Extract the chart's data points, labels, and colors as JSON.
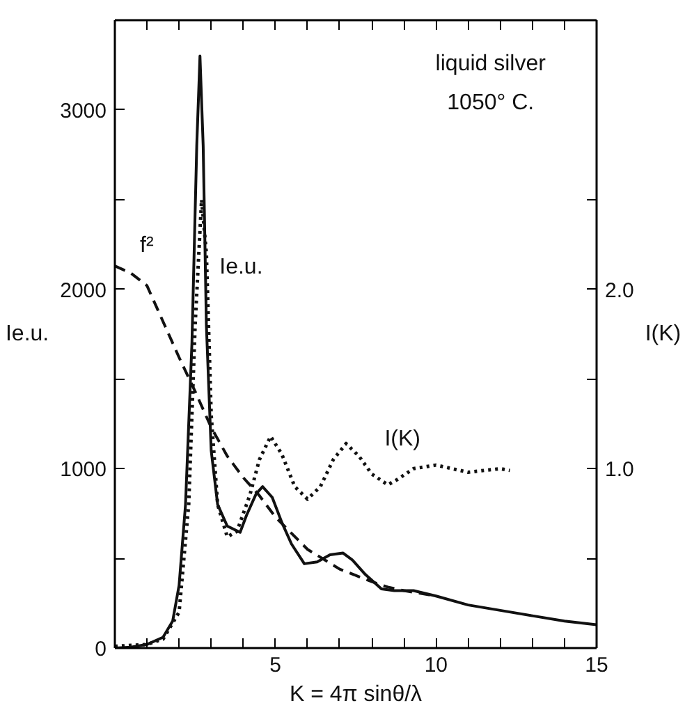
{
  "chart_data": {
    "type": "line",
    "xlabel": "K = 4π sinθ/λ",
    "ylabel": "Ie.u.",
    "y2label": "I(K)",
    "annotations": [
      "liquid silver",
      "1050° C."
    ],
    "xlim": [
      0,
      15
    ],
    "ylim": [
      0,
      3500
    ],
    "y2lim": [
      0,
      3.5
    ],
    "xticks": [
      {
        "value": 1,
        "label": null
      },
      {
        "value": 2,
        "label": null
      },
      {
        "value": 3,
        "label": null
      },
      {
        "value": 4,
        "label": null
      },
      5,
      {
        "value": 6,
        "label": null
      },
      {
        "value": 7,
        "label": null
      },
      {
        "value": 8,
        "label": null
      },
      {
        "value": 9,
        "label": null
      },
      10,
      {
        "value": 11,
        "label": null
      },
      {
        "value": 12,
        "label": null
      },
      {
        "value": 13,
        "label": null
      },
      {
        "value": 14,
        "label": null
      },
      15
    ],
    "yticks": [
      0,
      {
        "value": 500,
        "label": null
      },
      1000,
      {
        "value": 1500,
        "label": null
      },
      2000,
      {
        "value": 2500,
        "label": null
      },
      3000
    ],
    "y2ticks": [
      {
        "value": 0.5,
        "label": null
      },
      {
        "value": 1.0,
        "label": "1.0"
      },
      {
        "value": 1.5,
        "label": null
      },
      {
        "value": 2.0,
        "label": "2.0"
      },
      {
        "value": 2.5,
        "label": null
      }
    ],
    "grid": false,
    "legend": false,
    "marker": "none",
    "series": [
      {
        "name": "Ie.u.",
        "color": "#111111",
        "line_style": "solid",
        "x": [
          0,
          0.5,
          1,
          1.5,
          1.8,
          2.0,
          2.2,
          2.4,
          2.55,
          2.65,
          2.75,
          2.85,
          3.0,
          3.2,
          3.5,
          3.9,
          4.1,
          4.4,
          4.6,
          4.9,
          5.2,
          5.5,
          5.9,
          6.3,
          6.7,
          7.1,
          7.4,
          7.8,
          8.3,
          8.7,
          9.3,
          10,
          11,
          12,
          13,
          14,
          15
        ],
        "values": [
          0,
          5,
          20,
          60,
          150,
          350,
          800,
          1700,
          2800,
          3300,
          2800,
          1800,
          1100,
          800,
          680,
          645,
          740,
          860,
          900,
          840,
          700,
          580,
          470,
          480,
          520,
          530,
          490,
          410,
          330,
          320,
          320,
          290,
          240,
          210,
          180,
          150,
          130
        ]
      },
      {
        "name": "f²",
        "color": "#111111",
        "line_style": "dashed",
        "x": [
          0,
          0.5,
          1,
          1.5,
          2,
          2.5,
          3,
          3.5,
          4,
          4.5,
          5,
          5.5,
          6,
          7,
          8,
          8.5,
          9,
          9.5,
          10
        ],
        "values": [
          2130,
          2090,
          2020,
          1820,
          1620,
          1430,
          1230,
          1070,
          950,
          850,
          730,
          640,
          550,
          440,
          370,
          340,
          320,
          305,
          290
        ]
      },
      {
        "name": "I(K)",
        "color": "#111111",
        "line_style": "dotted",
        "axis": "y2",
        "x": [
          0,
          1,
          1.5,
          2.0,
          2.3,
          2.5,
          2.7,
          2.85,
          3.0,
          3.2,
          3.5,
          3.8,
          4.2,
          4.5,
          4.85,
          5.2,
          5.6,
          6.0,
          6.4,
          6.8,
          7.2,
          7.6,
          8.0,
          8.5,
          8.8,
          9.3,
          10,
          10.5,
          11,
          11.5,
          12,
          12.3
        ],
        "values": [
          0.01,
          0.02,
          0.05,
          0.2,
          0.8,
          1.8,
          2.5,
          2.2,
          1.3,
          0.8,
          0.62,
          0.65,
          0.85,
          1.05,
          1.18,
          1.08,
          0.9,
          0.83,
          0.9,
          1.05,
          1.14,
          1.07,
          0.97,
          0.91,
          0.94,
          1.0,
          1.02,
          1.0,
          0.98,
          0.99,
          1.0,
          0.99
        ]
      }
    ]
  }
}
